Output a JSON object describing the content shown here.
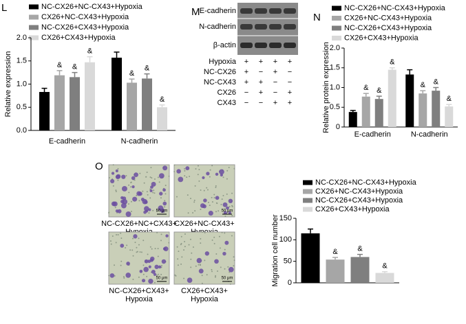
{
  "chart_data": [
    {
      "type": "bar",
      "label": "L",
      "ylabel": "Relative expression",
      "categories": [
        "E-cadherin",
        "N-cadherin"
      ],
      "ylim": [
        0,
        2.0
      ],
      "yticks": [
        {
          "value": 0,
          "label": "0.0"
        },
        0.5,
        {
          "value": 1,
          "label": "1.0"
        },
        1.5,
        {
          "value": 2,
          "label": "2.0"
        }
      ],
      "series": [
        {
          "name": "NC-CX26+NC-CX43+Hypoxia",
          "color": "#000000",
          "values": [
            0.83,
            1.57
          ],
          "errors": [
            0.08,
            0.12
          ]
        },
        {
          "name": "CX26+NC-CX43+Hypoxia",
          "color": "#a6a6a6",
          "values": [
            1.19,
            1.03
          ],
          "errors": [
            0.1,
            0.08
          ],
          "annotations": [
            "&",
            "&"
          ]
        },
        {
          "name": "NC-CX26+CX43+Hypoxia",
          "color": "#7f7f7f",
          "values": [
            1.15,
            1.12
          ],
          "errors": [
            0.1,
            0.1
          ],
          "annotations": [
            "&",
            "&"
          ]
        },
        {
          "name": "CX26+CX43+Hypoxia",
          "color": "#d9d9d9",
          "values": [
            1.47,
            0.5
          ],
          "errors": [
            0.12,
            0.05
          ],
          "annotations": [
            "&",
            "&"
          ]
        }
      ]
    },
    {
      "type": "bar",
      "label": "N",
      "ylabel": "Relative protein expression",
      "categories": [
        "E-cadherin",
        "N-cadherin"
      ],
      "ylim": [
        0,
        2.0
      ],
      "yticks": [
        0,
        0.5,
        {
          "value": 1,
          "label": "1.0"
        },
        1.5,
        {
          "value": 2,
          "label": "2.0"
        }
      ],
      "series": [
        {
          "name": "NC-CX26+NC-CX43+Hypoxia",
          "color": "#000000",
          "values": [
            0.38,
            1.33
          ],
          "errors": [
            0.04,
            0.12
          ]
        },
        {
          "name": "CX26+NC-CX43+Hypoxia",
          "color": "#a6a6a6",
          "values": [
            0.77,
            0.85
          ],
          "errors": [
            0.08,
            0.07
          ],
          "annotations": [
            "&",
            "&"
          ]
        },
        {
          "name": "NC-CX26+CX43+Hypoxia",
          "color": "#7f7f7f",
          "values": [
            0.71,
            0.92
          ],
          "errors": [
            0.07,
            0.08
          ],
          "annotations": [
            "&",
            "&"
          ]
        },
        {
          "name": "CX26+CX43+Hypoxia",
          "color": "#d9d9d9",
          "values": [
            1.45,
            0.52
          ],
          "errors": [
            0.05,
            0.05
          ],
          "annotations": [
            "&",
            "&"
          ]
        }
      ]
    },
    {
      "type": "bar",
      "label": "O",
      "ylabel": "Migration cell number",
      "categories": [
        null
      ],
      "ylim": [
        0,
        150
      ],
      "yticks": [
        0,
        50,
        100,
        150
      ],
      "series": [
        {
          "name": "NC-CX26+NC-CX43+Hypoxia",
          "color": "#000000",
          "values": [
            115
          ],
          "errors": [
            10
          ]
        },
        {
          "name": "CX26+NC-CX43+Hypoxia",
          "color": "#a6a6a6",
          "values": [
            54
          ],
          "errors": [
            5
          ],
          "annotations": [
            "&"
          ]
        },
        {
          "name": "NC-CX26+CX43+Hypoxia",
          "color": "#7f7f7f",
          "values": [
            60
          ],
          "errors": [
            6
          ],
          "annotations": [
            "&"
          ]
        },
        {
          "name": "CX26+CX43+Hypoxia",
          "color": "#d9d9d9",
          "values": [
            23
          ],
          "errors": [
            3
          ],
          "annotations": [
            "&"
          ]
        }
      ]
    }
  ],
  "blot": {
    "label": "M",
    "bands": [
      "E-cadherin",
      "N-cadherin",
      "β-actin"
    ],
    "rows": [
      {
        "name": "Hypoxia",
        "lanes": [
          "+",
          "+",
          "+",
          "+"
        ]
      },
      {
        "name": "NC-CX26",
        "lanes": [
          "+",
          "−",
          "+",
          "−"
        ]
      },
      {
        "name": "NC-CX43",
        "lanes": [
          "+",
          "+",
          "−",
          "−"
        ]
      },
      {
        "name": "CX26",
        "lanes": [
          "−",
          "+",
          "−",
          "+"
        ]
      },
      {
        "name": "CX43",
        "lanes": [
          "−",
          "−",
          "+",
          "+"
        ]
      }
    ]
  },
  "micrographs": [
    {
      "caption": [
        "NC-CX26+NC+CX43+",
        "Hypoxia"
      ],
      "scale": "50 μm"
    },
    {
      "caption": [
        "CX26+NC-CX43+",
        "Hypoxia"
      ],
      "scale": "50 μm"
    },
    {
      "caption": [
        "NC-CX26+CX43+",
        "Hypoxia"
      ],
      "scale": "50 μm"
    },
    {
      "caption": [
        "CX26+CX43+",
        "Hypoxia"
      ],
      "scale": "50 μm"
    }
  ]
}
